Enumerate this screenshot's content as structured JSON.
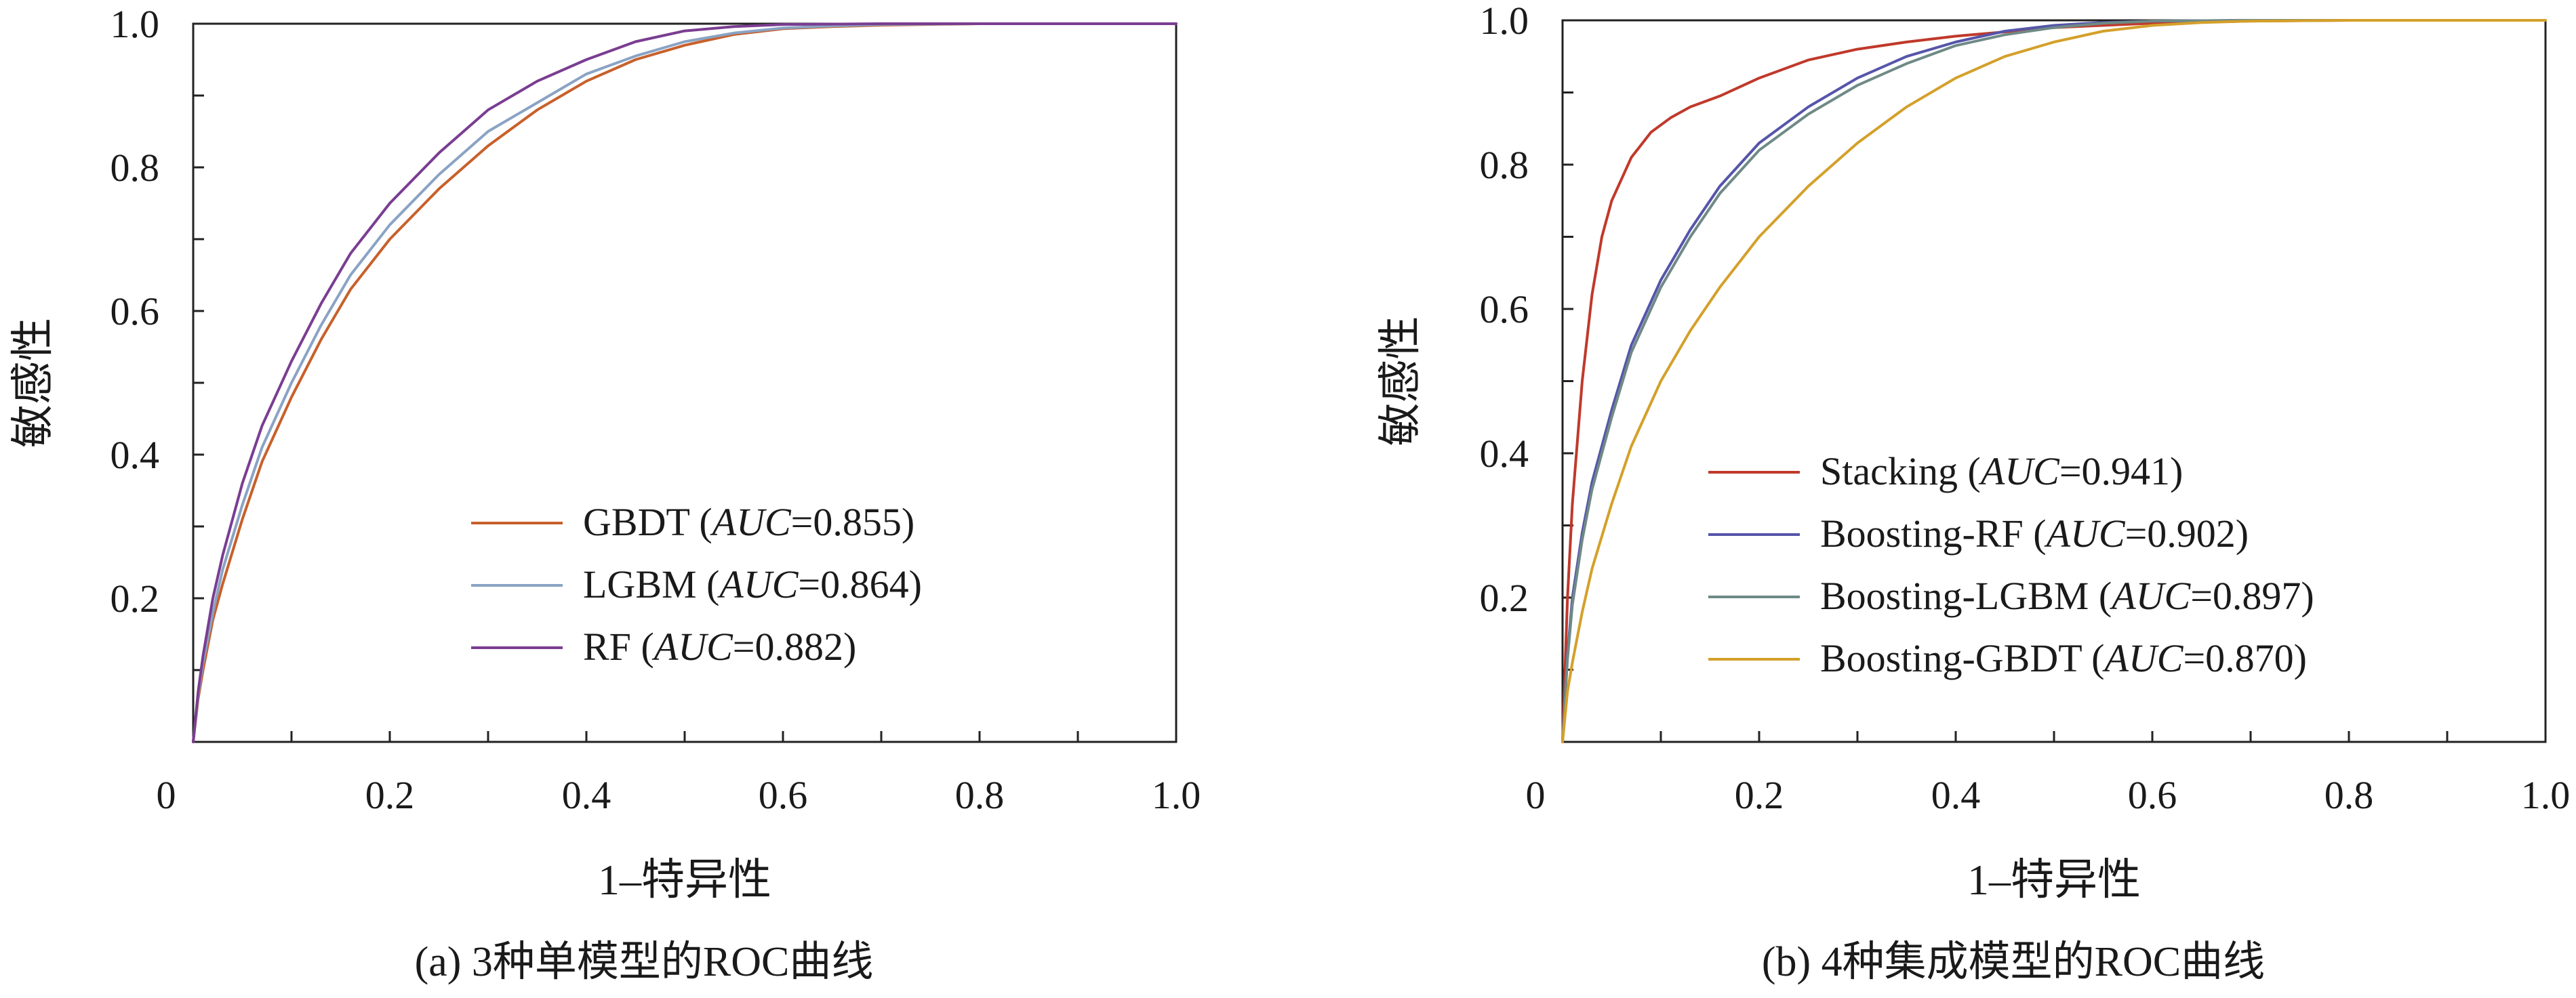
{
  "chart_data": [
    {
      "type": "line",
      "caption": "(a) 3种单模型的ROC曲线",
      "xlabel": "1–特异性",
      "ylabel": "敏感性",
      "xlim": [
        0,
        1.0
      ],
      "ylim": [
        0,
        1.0
      ],
      "x_ticks": [
        "0",
        "0.2",
        "0.4",
        "0.6",
        "0.8",
        "1.0"
      ],
      "y_ticks": [
        "0.2",
        "0.4",
        "0.6",
        "0.8",
        "1.0"
      ],
      "grid": false,
      "legend_position": "lower-right",
      "series": [
        {
          "name": "GBDT",
          "auc_label": "AUC",
          "auc_value": "=0.855)",
          "color": "#c8602a",
          "x": [
            0,
            0.005,
            0.01,
            0.02,
            0.03,
            0.05,
            0.07,
            0.1,
            0.13,
            0.16,
            0.2,
            0.25,
            0.3,
            0.35,
            0.4,
            0.45,
            0.5,
            0.55,
            0.6,
            0.65,
            0.7,
            0.8,
            0.9,
            1.0
          ],
          "y": [
            0,
            0.06,
            0.1,
            0.17,
            0.22,
            0.31,
            0.39,
            0.48,
            0.56,
            0.63,
            0.7,
            0.77,
            0.83,
            0.88,
            0.92,
            0.95,
            0.97,
            0.985,
            0.993,
            0.996,
            0.998,
            1.0,
            1.0,
            1.0
          ]
        },
        {
          "name": "LGBM",
          "auc_label": "AUC",
          "auc_value": "=0.864)",
          "color": "#8aa3c4",
          "x": [
            0,
            0.005,
            0.01,
            0.02,
            0.03,
            0.05,
            0.07,
            0.1,
            0.13,
            0.16,
            0.2,
            0.25,
            0.3,
            0.35,
            0.4,
            0.45,
            0.5,
            0.55,
            0.6,
            0.65,
            0.7,
            0.8,
            0.9,
            1.0
          ],
          "y": [
            0,
            0.065,
            0.11,
            0.18,
            0.24,
            0.33,
            0.41,
            0.5,
            0.58,
            0.65,
            0.72,
            0.79,
            0.85,
            0.89,
            0.93,
            0.955,
            0.975,
            0.987,
            0.994,
            0.997,
            0.999,
            1.0,
            1.0,
            1.0
          ]
        },
        {
          "name": "RF",
          "auc_label": "AUC",
          "auc_value": "=0.882)",
          "color": "#7a3d91",
          "x": [
            0,
            0.005,
            0.01,
            0.02,
            0.03,
            0.05,
            0.07,
            0.1,
            0.13,
            0.16,
            0.2,
            0.25,
            0.3,
            0.35,
            0.4,
            0.45,
            0.5,
            0.55,
            0.6,
            0.7,
            0.8,
            0.9,
            1.0
          ],
          "y": [
            0,
            0.07,
            0.12,
            0.2,
            0.26,
            0.36,
            0.44,
            0.53,
            0.61,
            0.68,
            0.75,
            0.82,
            0.88,
            0.92,
            0.95,
            0.975,
            0.99,
            0.996,
            0.999,
            1.0,
            1.0,
            1.0,
            1.0
          ]
        }
      ]
    },
    {
      "type": "line",
      "caption": "(b) 4种集成模型的ROC曲线",
      "xlabel": "1–特异性",
      "ylabel": "敏感性",
      "xlim": [
        0,
        1.0
      ],
      "ylim": [
        0,
        1.0
      ],
      "x_ticks": [
        "0",
        "0.2",
        "0.4",
        "0.6",
        "0.8",
        "1.0"
      ],
      "y_ticks": [
        "0.2",
        "0.4",
        "0.6",
        "0.8",
        "1.0"
      ],
      "grid": false,
      "legend_position": "lower-right",
      "series": [
        {
          "name": "Stacking",
          "auc_label": "AUC",
          "auc_value": "=0.941)",
          "color": "#c0392b",
          "x": [
            0,
            0.005,
            0.01,
            0.02,
            0.03,
            0.04,
            0.05,
            0.07,
            0.09,
            0.11,
            0.13,
            0.16,
            0.2,
            0.25,
            0.3,
            0.35,
            0.4,
            0.5,
            0.6,
            0.7,
            0.8,
            0.9,
            1.0
          ],
          "y": [
            0,
            0.2,
            0.33,
            0.5,
            0.62,
            0.7,
            0.75,
            0.81,
            0.845,
            0.865,
            0.88,
            0.895,
            0.92,
            0.945,
            0.96,
            0.97,
            0.978,
            0.99,
            0.996,
            0.999,
            1.0,
            1.0,
            1.0
          ]
        },
        {
          "name": "Boosting-RF",
          "auc_label": "AUC",
          "auc_value": "=0.902)",
          "color": "#5555aa",
          "x": [
            0,
            0.005,
            0.01,
            0.02,
            0.03,
            0.05,
            0.07,
            0.1,
            0.13,
            0.16,
            0.2,
            0.25,
            0.3,
            0.35,
            0.4,
            0.45,
            0.5,
            0.55,
            0.6,
            0.7,
            0.8,
            0.9,
            1.0
          ],
          "y": [
            0,
            0.12,
            0.2,
            0.29,
            0.36,
            0.46,
            0.55,
            0.64,
            0.71,
            0.77,
            0.83,
            0.88,
            0.92,
            0.95,
            0.97,
            0.985,
            0.993,
            0.997,
            0.999,
            1.0,
            1.0,
            1.0,
            1.0
          ]
        },
        {
          "name": "Boosting-LGBM",
          "auc_label": "AUC",
          "auc_value": "=0.897)",
          "color": "#6f8a86",
          "x": [
            0,
            0.005,
            0.01,
            0.02,
            0.03,
            0.05,
            0.07,
            0.1,
            0.13,
            0.16,
            0.2,
            0.25,
            0.3,
            0.35,
            0.4,
            0.45,
            0.5,
            0.55,
            0.6,
            0.7,
            0.8,
            0.9,
            1.0
          ],
          "y": [
            0,
            0.115,
            0.19,
            0.28,
            0.35,
            0.45,
            0.54,
            0.63,
            0.7,
            0.76,
            0.82,
            0.87,
            0.91,
            0.94,
            0.965,
            0.98,
            0.99,
            0.996,
            0.999,
            1.0,
            1.0,
            1.0,
            1.0
          ]
        },
        {
          "name": "Boosting-GBDT",
          "auc_label": "AUC",
          "auc_value": "=0.870)",
          "color": "#d4a02a",
          "x": [
            0,
            0.005,
            0.01,
            0.02,
            0.03,
            0.05,
            0.07,
            0.1,
            0.13,
            0.16,
            0.2,
            0.25,
            0.3,
            0.35,
            0.4,
            0.45,
            0.5,
            0.55,
            0.6,
            0.65,
            0.7,
            0.8,
            0.9,
            1.0
          ],
          "y": [
            0,
            0.07,
            0.11,
            0.18,
            0.24,
            0.33,
            0.41,
            0.5,
            0.57,
            0.63,
            0.7,
            0.77,
            0.83,
            0.88,
            0.92,
            0.95,
            0.97,
            0.985,
            0.993,
            0.997,
            0.999,
            1.0,
            1.0,
            1.0
          ]
        }
      ]
    }
  ]
}
